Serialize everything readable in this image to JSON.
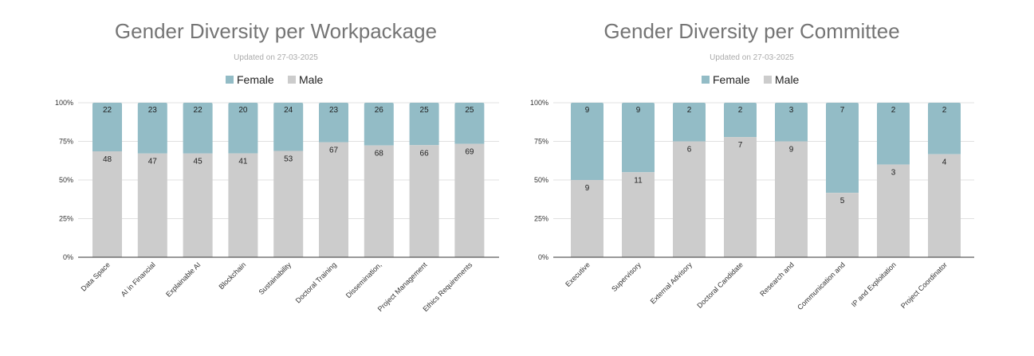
{
  "colors": {
    "female": "#93bcc6",
    "male": "#cccccc",
    "grid": "#e0e0e0",
    "axis": "#333333"
  },
  "chart_data": [
    {
      "type": "bar",
      "stacked": "percent",
      "title": "Gender Diversity per Workpackage",
      "subtitle": "Updated on 27-03-2025",
      "legend": [
        "Female",
        "Male"
      ],
      "legend_position": "top",
      "yticks": [
        "0%",
        "25%",
        "50%",
        "75%",
        "100%"
      ],
      "ylim": [
        0,
        100
      ],
      "grid": true,
      "categories": [
        "Data Space",
        "AI in Financial",
        "Explainable AI",
        "Blockchain",
        "Sustainability",
        "Doctoral Training",
        "Dissemination,",
        "Project Management",
        "Ethics Requirements"
      ],
      "series": [
        {
          "name": "Female",
          "values": [
            22,
            23,
            22,
            20,
            24,
            23,
            26,
            25,
            25
          ]
        },
        {
          "name": "Male",
          "values": [
            48,
            47,
            45,
            41,
            53,
            67,
            68,
            66,
            69
          ]
        }
      ]
    },
    {
      "type": "bar",
      "stacked": "percent",
      "title": "Gender Diversity per Committee",
      "subtitle": "Updated on 27-03-2025",
      "legend": [
        "Female",
        "Male"
      ],
      "legend_position": "top",
      "yticks": [
        "0%",
        "25%",
        "50%",
        "75%",
        "100%"
      ],
      "ylim": [
        0,
        100
      ],
      "grid": true,
      "categories": [
        "Executive",
        "Supervisory",
        "External Advisory",
        "Doctoral Candidate",
        "Research and",
        "Communication and",
        "IP and Exploitation",
        "Project Coordinator"
      ],
      "series": [
        {
          "name": "Female",
          "values": [
            9,
            9,
            2,
            2,
            3,
            7,
            2,
            2
          ]
        },
        {
          "name": "Male",
          "values": [
            9,
            11,
            6,
            7,
            9,
            5,
            3,
            4
          ]
        }
      ]
    }
  ]
}
